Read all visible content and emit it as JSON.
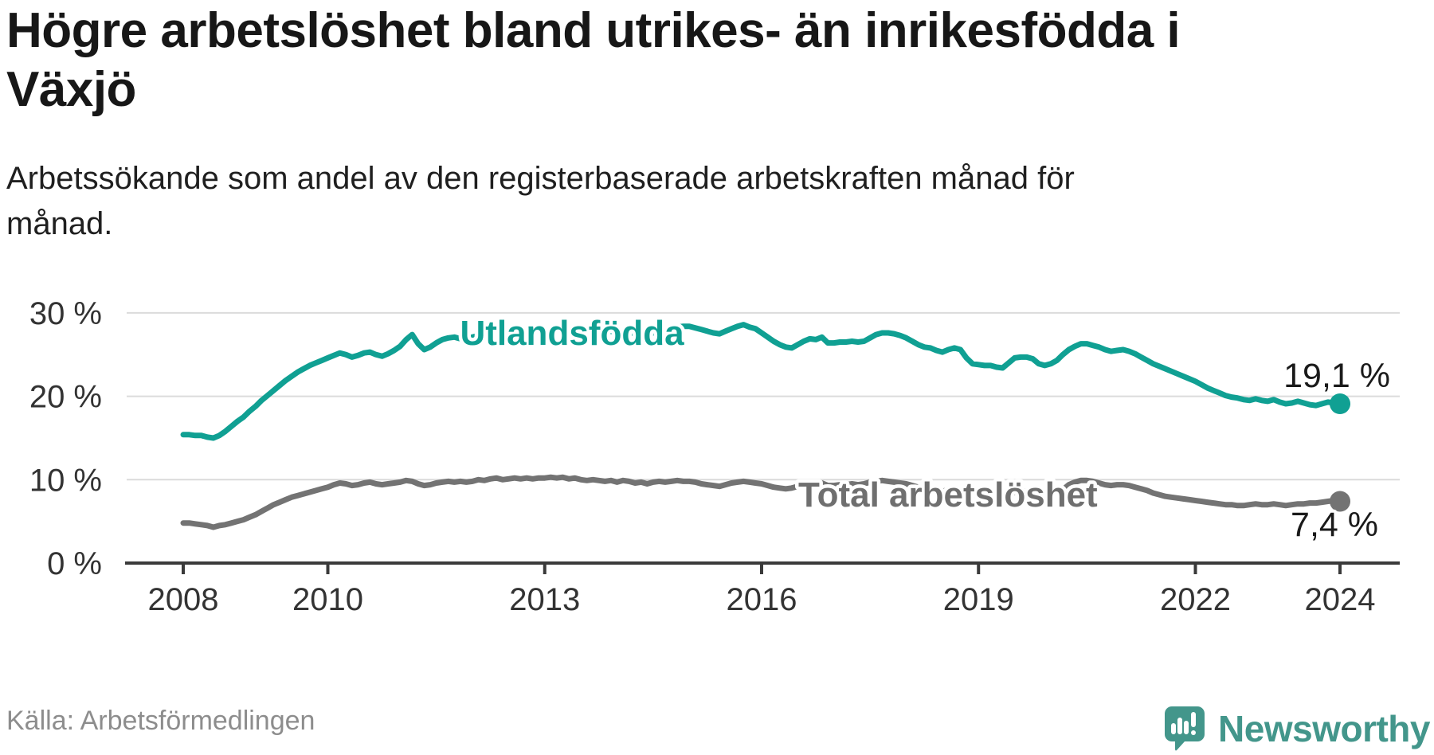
{
  "header": {
    "title_lines": [
      "Högre arbetslöshet bland utrikes- än inrikesfödda i",
      "Växjö"
    ],
    "subtitle_lines": [
      "Arbetssökande som andel av den registerbaserade arbetskraften månad för",
      "månad."
    ]
  },
  "chart_data": {
    "type": "line",
    "title": "Högre arbetslöshet bland utrikes- än inrikesfödda i Växjö",
    "subtitle": "Arbetssökande som andel av den registerbaserade arbetskraften månad för månad.",
    "x_unit": "month",
    "x_start": "2008-01",
    "x_end": "2024-01",
    "x_tick_years": [
      2008,
      2010,
      2013,
      2016,
      2019,
      2022,
      2024
    ],
    "x_tick_labels": [
      "2008",
      "2010",
      "2013",
      "2016",
      "2019",
      "2022",
      "2024"
    ],
    "y_ticks": [
      30,
      20,
      10,
      0
    ],
    "y_tick_labels": [
      "30 %",
      "20 %",
      "10 %",
      "0 %"
    ],
    "ylim": [
      0,
      32
    ],
    "grid": true,
    "legend_position": "inline-labels",
    "series": [
      {
        "name": "Utlandsfödda",
        "color": "#10a093",
        "end_label": "19,1 %",
        "end_value": 19.1,
        "values": [
          15.4,
          15.4,
          15.3,
          15.3,
          15.1,
          15.0,
          15.3,
          15.8,
          16.4,
          17.0,
          17.5,
          18.2,
          18.8,
          19.5,
          20.1,
          20.7,
          21.3,
          21.9,
          22.4,
          22.9,
          23.3,
          23.7,
          24.0,
          24.3,
          24.6,
          24.9,
          25.2,
          25.0,
          24.7,
          24.9,
          25.2,
          25.3,
          25.0,
          24.8,
          25.1,
          25.5,
          26.0,
          26.8,
          27.4,
          26.3,
          25.6,
          25.9,
          26.4,
          26.8,
          27.0,
          27.1,
          26.9,
          27.0,
          27.1,
          27.3,
          27.2,
          27.4,
          27.5,
          27.3,
          27.6,
          27.7,
          27.5,
          27.8,
          27.6,
          27.7,
          27.8,
          28.0,
          27.9,
          28.1,
          28.0,
          28.2,
          28.1,
          27.9,
          28.0,
          27.8,
          27.7,
          27.8,
          27.6,
          27.8,
          27.7,
          27.5,
          27.6,
          27.4,
          27.6,
          27.8,
          28.0,
          28.2,
          28.3,
          28.4,
          28.4,
          28.2,
          28.0,
          27.8,
          27.6,
          27.5,
          27.8,
          28.1,
          28.4,
          28.6,
          28.3,
          28.1,
          27.6,
          27.1,
          26.6,
          26.2,
          25.9,
          25.8,
          26.2,
          26.6,
          26.9,
          26.8,
          27.1,
          26.4,
          26.4,
          26.5,
          26.5,
          26.6,
          26.5,
          26.6,
          27.0,
          27.4,
          27.6,
          27.6,
          27.5,
          27.3,
          27.0,
          26.6,
          26.2,
          25.9,
          25.8,
          25.5,
          25.3,
          25.6,
          25.8,
          25.6,
          24.6,
          23.9,
          23.8,
          23.7,
          23.7,
          23.5,
          23.4,
          24.0,
          24.6,
          24.7,
          24.7,
          24.5,
          23.9,
          23.7,
          23.9,
          24.3,
          25.0,
          25.6,
          26.0,
          26.3,
          26.3,
          26.1,
          25.9,
          25.6,
          25.4,
          25.5,
          25.6,
          25.4,
          25.1,
          24.7,
          24.3,
          23.9,
          23.6,
          23.3,
          23.0,
          22.7,
          22.4,
          22.1,
          21.8,
          21.4,
          21.0,
          20.7,
          20.4,
          20.1,
          19.9,
          19.8,
          19.6,
          19.5,
          19.7,
          19.5,
          19.4,
          19.6,
          19.3,
          19.1,
          19.2,
          19.4,
          19.2,
          19.0,
          18.9,
          19.1,
          19.3,
          19.2,
          19.1
        ]
      },
      {
        "name": "Total arbetslöshet",
        "color": "#737373",
        "end_label": "7,4 %",
        "end_value": 7.4,
        "values": [
          4.8,
          4.8,
          4.7,
          4.6,
          4.5,
          4.3,
          4.5,
          4.6,
          4.8,
          5.0,
          5.2,
          5.5,
          5.8,
          6.2,
          6.6,
          7.0,
          7.3,
          7.6,
          7.9,
          8.1,
          8.3,
          8.5,
          8.7,
          8.9,
          9.1,
          9.4,
          9.6,
          9.5,
          9.3,
          9.4,
          9.6,
          9.7,
          9.5,
          9.4,
          9.5,
          9.6,
          9.7,
          9.9,
          9.8,
          9.5,
          9.3,
          9.4,
          9.6,
          9.7,
          9.8,
          9.7,
          9.8,
          9.7,
          9.8,
          10.0,
          9.9,
          10.1,
          10.2,
          10.0,
          10.1,
          10.2,
          10.1,
          10.2,
          10.1,
          10.2,
          10.2,
          10.3,
          10.2,
          10.3,
          10.1,
          10.2,
          10.0,
          9.9,
          10.0,
          9.9,
          9.8,
          9.9,
          9.7,
          9.9,
          9.8,
          9.6,
          9.7,
          9.5,
          9.7,
          9.8,
          9.7,
          9.8,
          9.9,
          9.8,
          9.8,
          9.7,
          9.5,
          9.4,
          9.3,
          9.2,
          9.4,
          9.6,
          9.7,
          9.8,
          9.7,
          9.6,
          9.5,
          9.3,
          9.1,
          9.0,
          8.9,
          9.0,
          9.2,
          9.4,
          9.5,
          9.4,
          9.6,
          9.3,
          9.3,
          9.4,
          9.4,
          9.5,
          9.4,
          9.5,
          9.7,
          9.8,
          9.9,
          9.8,
          9.7,
          9.6,
          9.5,
          9.3,
          9.1,
          9.0,
          8.9,
          8.7,
          8.6,
          8.8,
          8.9,
          8.8,
          8.4,
          8.2,
          8.1,
          8.0,
          8.0,
          7.9,
          7.9,
          8.2,
          8.5,
          8.6,
          8.6,
          8.4,
          8.1,
          8.0,
          8.1,
          8.3,
          8.8,
          9.4,
          9.7,
          9.9,
          9.9,
          9.8,
          9.6,
          9.4,
          9.3,
          9.4,
          9.4,
          9.3,
          9.1,
          8.9,
          8.7,
          8.4,
          8.2,
          8.0,
          7.9,
          7.8,
          7.7,
          7.6,
          7.5,
          7.4,
          7.3,
          7.2,
          7.1,
          7.0,
          7.0,
          6.9,
          6.9,
          7.0,
          7.1,
          7.0,
          7.0,
          7.1,
          7.0,
          6.9,
          7.0,
          7.1,
          7.1,
          7.2,
          7.2,
          7.3,
          7.4,
          7.5,
          7.4
        ]
      }
    ]
  },
  "source": {
    "text": "Källa: Arbetsförmedlingen"
  },
  "logo": {
    "text": "Newsworthy",
    "color": "#43968b",
    "icon": "newsworthy-bar-chart-bubble-icon"
  }
}
